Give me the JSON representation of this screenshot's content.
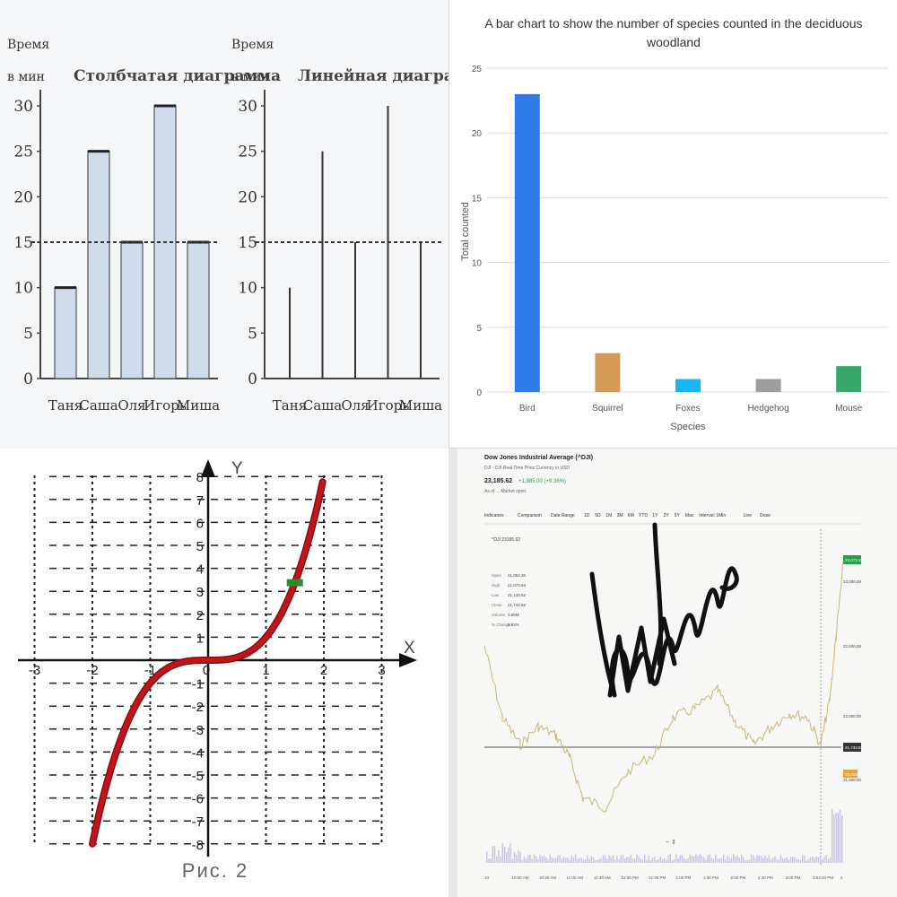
{
  "chart_data": [
    {
      "type": "bar",
      "title": "Столбчатая диаграмма",
      "ylabel_line1": "Время",
      "ylabel_line2": "в мин",
      "categories": [
        "Таня",
        "Саша",
        "Оля",
        "Игорь",
        "Миша"
      ],
      "values": [
        10,
        25,
        15,
        30,
        15
      ],
      "yticks": [
        0,
        5,
        10,
        15,
        20,
        25,
        30
      ],
      "ylim": [
        0,
        33
      ],
      "reference_line": 15,
      "bar_color": "#cfdcec"
    },
    {
      "type": "line",
      "title": "Линейная диаграмма",
      "ylabel_line1": "Время",
      "ylabel_line2": "в мин",
      "categories": [
        "Таня",
        "Саша",
        "Оля",
        "Игорь",
        "Миша"
      ],
      "values": [
        10,
        25,
        15,
        30,
        15
      ],
      "yticks": [
        0,
        5,
        10,
        15,
        20,
        25,
        30
      ],
      "ylim": [
        0,
        33
      ],
      "reference_line": 15
    },
    {
      "type": "bar",
      "title_line1": "A bar chart to show the number of species counted in the deciduous",
      "title_line2": "woodland",
      "categories": [
        "Bird",
        "Squirrel",
        "Foxes",
        "Hedgehog",
        "Mouse"
      ],
      "values": [
        23,
        3,
        1,
        1,
        2
      ],
      "colors": [
        "#2f7bea",
        "#d39a57",
        "#18b6f2",
        "#9e9e9e",
        "#37a86a"
      ],
      "xlabel": "Species",
      "ylabel": "Total counted",
      "yticks": [
        0,
        5,
        10,
        15,
        20,
        25
      ],
      "ylim": [
        0,
        25
      ],
      "grid": true
    },
    {
      "type": "line",
      "function": "y = x^3",
      "xlabel": "X",
      "ylabel": "Y",
      "xticks": [
        "-3",
        "-2",
        "-1",
        "0",
        "1",
        "2",
        "3"
      ],
      "yticks": [
        "8",
        "7",
        "6",
        "5",
        "4",
        "3",
        "2",
        "1",
        "-1",
        "-2",
        "-3",
        "-4",
        "-5",
        "-6",
        "-7",
        "-8"
      ],
      "xlim": [
        -3,
        3
      ],
      "ylim": [
        -8,
        8
      ],
      "x": [
        -2,
        -1.5,
        -1,
        -0.5,
        0,
        0.5,
        1,
        1.5,
        2
      ],
      "y": [
        -8,
        -3.375,
        -1,
        -0.125,
        0,
        0.125,
        1,
        3.375,
        8
      ],
      "curve_color": "#c0151a",
      "marker_point": [
        1.5,
        3.375
      ],
      "caption": "Рис. 2"
    }
  ],
  "stock": {
    "title": "Dow Jones Industrial Average (^DJI)",
    "subtitle": "DJI - DJI Real Time Price Currency in USD",
    "price": "23,185.62",
    "change": "+1,985.00 (+9.36%)",
    "as_of": "As of ... Market open.",
    "toolbar": [
      "Indicators",
      "Comparison",
      "Date Range",
      "1D",
      "5D",
      "1M",
      "3M",
      "6M",
      "YTD",
      "1Y",
      "2Y",
      "5Y",
      "Max",
      "Interval: 1Min",
      "Line",
      "Draw"
    ],
    "series_label": "^DJI 23185.62",
    "stats": [
      {
        "k": "Open",
        "v": "21,054.36"
      },
      {
        "k": "High",
        "v": "21,073.63"
      },
      {
        "k": "Low",
        "v": "21,143.62"
      },
      {
        "k": "Close",
        "v": "21,743.52"
      },
      {
        "k": "Volume",
        "v": "3.86M"
      },
      {
        "k": "% Change",
        "v": "2.92%"
      }
    ],
    "price_axis": [
      "23,000.00",
      "22,500.00",
      "22,000.00",
      "21,500.00"
    ],
    "last_badge": "23,073.28",
    "ref_badge": "21,743.52",
    "vol_badge": "15.01M",
    "time_axis": [
      "10",
      "10:00 AM",
      "10:30 AM",
      "11:00 AM",
      "11:30 AM",
      "12:00 PM",
      "12:30 PM",
      "1:00 PM",
      "1:30 PM",
      "2:00 PM",
      "2:30 PM",
      "3:00 PM",
      "3:53:33 PM",
      "4"
    ],
    "line_color": "#c8b87a",
    "up_color": "#2a9d4a"
  }
}
